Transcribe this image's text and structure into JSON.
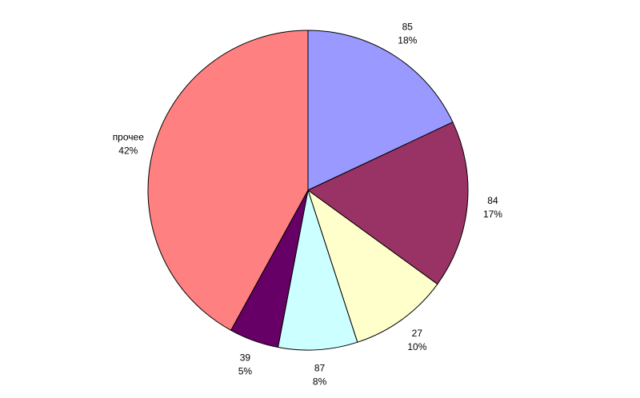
{
  "chart_data": {
    "type": "pie",
    "categories": [
      "85",
      "84",
      "27",
      "87",
      "39",
      "прочее"
    ],
    "values": [
      18,
      17,
      10,
      8,
      5,
      42
    ],
    "value_labels": [
      "18%",
      "17%",
      "10%",
      "8%",
      "5%",
      "42%"
    ],
    "colors": [
      "#9999ff",
      "#993366",
      "#ffffcc",
      "#ccffff",
      "#660066",
      "#ff8080"
    ]
  }
}
